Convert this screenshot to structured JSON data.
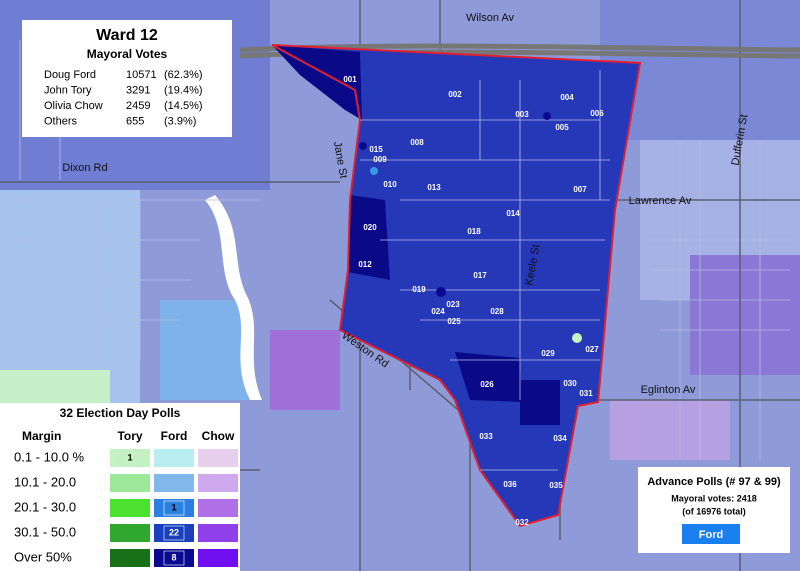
{
  "header": {
    "title": "Ward 12",
    "subtitle": "Mayoral Votes"
  },
  "results": [
    {
      "name": "Doug Ford",
      "votes": 10571,
      "share": "(62.3%)"
    },
    {
      "name": "John Tory",
      "votes": 3291,
      "share": "(19.4%)"
    },
    {
      "name": "Olivia Chow",
      "votes": 2459,
      "share": "(14.5%)"
    },
    {
      "name": "Others",
      "votes": 655,
      "share": "(3.9%)"
    }
  ],
  "legend": {
    "title": "32 Election Day Polls",
    "margin_header": "Margin",
    "columns": [
      "Tory",
      "Ford",
      "Chow"
    ],
    "rows": [
      {
        "label": "0.1 - 10.0 %",
        "cells": [
          {
            "color": "#c4f2c0",
            "count": 1
          },
          {
            "color": "#b8eef0"
          },
          {
            "color": "#e6d0ee"
          }
        ]
      },
      {
        "label": "10.1 - 20.0",
        "cells": [
          {
            "color": "#9ee89a"
          },
          {
            "color": "#80b8ec"
          },
          {
            "color": "#d0a8ee"
          }
        ]
      },
      {
        "label": "20.1 - 30.0",
        "cells": [
          {
            "color": "#4ce030"
          },
          {
            "color": "#2a80e0",
            "count": 1
          },
          {
            "color": "#b070e8"
          }
        ]
      },
      {
        "label": "30.1 - 50.0",
        "cells": [
          {
            "color": "#30a830"
          },
          {
            "color": "#1a40c0",
            "count": 22
          },
          {
            "color": "#9040e8"
          }
        ]
      },
      {
        "label": "Over 50%",
        "cells": [
          {
            "color": "#187018"
          },
          {
            "color": "#0a0a90",
            "count": 8
          },
          {
            "color": "#7010f0"
          }
        ]
      }
    ]
  },
  "streets": [
    "Wilson Av",
    "Dixon Rd",
    "Jane St",
    "Lawrence Av",
    "Dufferin St",
    "Keele St",
    "Weston Rd",
    "Eglinton Av"
  ],
  "polls": [
    "001",
    "002",
    "003",
    "004",
    "005",
    "006",
    "008",
    "015",
    "009",
    "010",
    "013",
    "007",
    "014",
    "018",
    "020",
    "012",
    "017",
    "019",
    "023",
    "024",
    "025",
    "028",
    "029",
    "027",
    "026",
    "030",
    "031",
    "033",
    "034",
    "036",
    "035",
    "032"
  ],
  "advance": {
    "title": "Advance Polls (# 97 & 99)",
    "votes": "Mayoral votes: 2418",
    "total": "(of 16976 total)",
    "winner": "Ford"
  }
}
